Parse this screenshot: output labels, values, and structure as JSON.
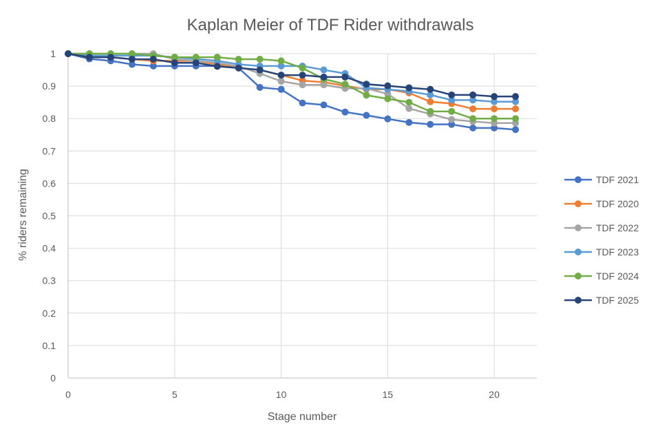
{
  "chart_data": {
    "type": "line",
    "title": "Kaplan Meier of TDF Rider withdrawals",
    "xlabel": "Stage number",
    "ylabel": "% riders remaining",
    "xlim": [
      0,
      22
    ],
    "ylim": [
      0,
      1
    ],
    "x_ticks": [
      0,
      5,
      10,
      15,
      20
    ],
    "y_ticks": [
      0,
      0.1,
      0.2,
      0.3,
      0.4,
      0.5,
      0.6,
      0.7,
      0.8,
      0.9,
      1
    ],
    "grid": true,
    "legend_position": "right",
    "x": [
      0,
      1,
      2,
      3,
      4,
      5,
      6,
      7,
      8,
      9,
      10,
      11,
      12,
      13,
      14,
      15,
      16,
      17,
      18,
      19,
      20,
      21
    ],
    "series": [
      {
        "name": "TDF 2021",
        "color": "#4472C4",
        "values": [
          1.0,
          0.984,
          0.978,
          0.967,
          0.962,
          0.962,
          0.962,
          0.962,
          0.956,
          0.896,
          0.89,
          0.848,
          0.842,
          0.82,
          0.81,
          0.799,
          0.788,
          0.782,
          0.782,
          0.771,
          0.771,
          0.766
        ]
      },
      {
        "name": "TDF 2020",
        "color": "#ED7D31",
        "values": [
          1.0,
          0.989,
          0.989,
          0.983,
          0.978,
          0.978,
          0.978,
          0.967,
          0.956,
          0.95,
          0.934,
          0.917,
          0.912,
          0.901,
          0.89,
          0.89,
          0.879,
          0.852,
          0.846,
          0.83,
          0.83,
          0.83
        ]
      },
      {
        "name": "TDF 2022",
        "color": "#A5A5A5",
        "values": [
          1.0,
          1.0,
          1.0,
          1.0,
          1.0,
          0.983,
          0.978,
          0.972,
          0.961,
          0.939,
          0.915,
          0.904,
          0.904,
          0.893,
          0.893,
          0.876,
          0.831,
          0.814,
          0.797,
          0.791,
          0.786,
          0.786
        ]
      },
      {
        "name": "TDF 2023",
        "color": "#5B9BD5",
        "values": [
          1.0,
          0.994,
          0.994,
          0.994,
          0.994,
          0.989,
          0.984,
          0.978,
          0.967,
          0.962,
          0.962,
          0.962,
          0.95,
          0.939,
          0.895,
          0.89,
          0.884,
          0.873,
          0.857,
          0.857,
          0.852,
          0.852
        ]
      },
      {
        "name": "TDF 2024",
        "color": "#70AD47",
        "values": [
          1.0,
          1.0,
          1.0,
          1.0,
          0.994,
          0.989,
          0.989,
          0.989,
          0.983,
          0.983,
          0.978,
          0.956,
          0.922,
          0.906,
          0.872,
          0.861,
          0.85,
          0.822,
          0.822,
          0.8,
          0.8,
          0.8
        ]
      },
      {
        "name": "TDF 2025",
        "color": "#264478",
        "values": [
          1.0,
          0.989,
          0.989,
          0.983,
          0.983,
          0.972,
          0.972,
          0.961,
          0.956,
          0.95,
          0.934,
          0.934,
          0.928,
          0.928,
          0.906,
          0.901,
          0.895,
          0.89,
          0.873,
          0.873,
          0.868,
          0.868
        ]
      }
    ]
  }
}
